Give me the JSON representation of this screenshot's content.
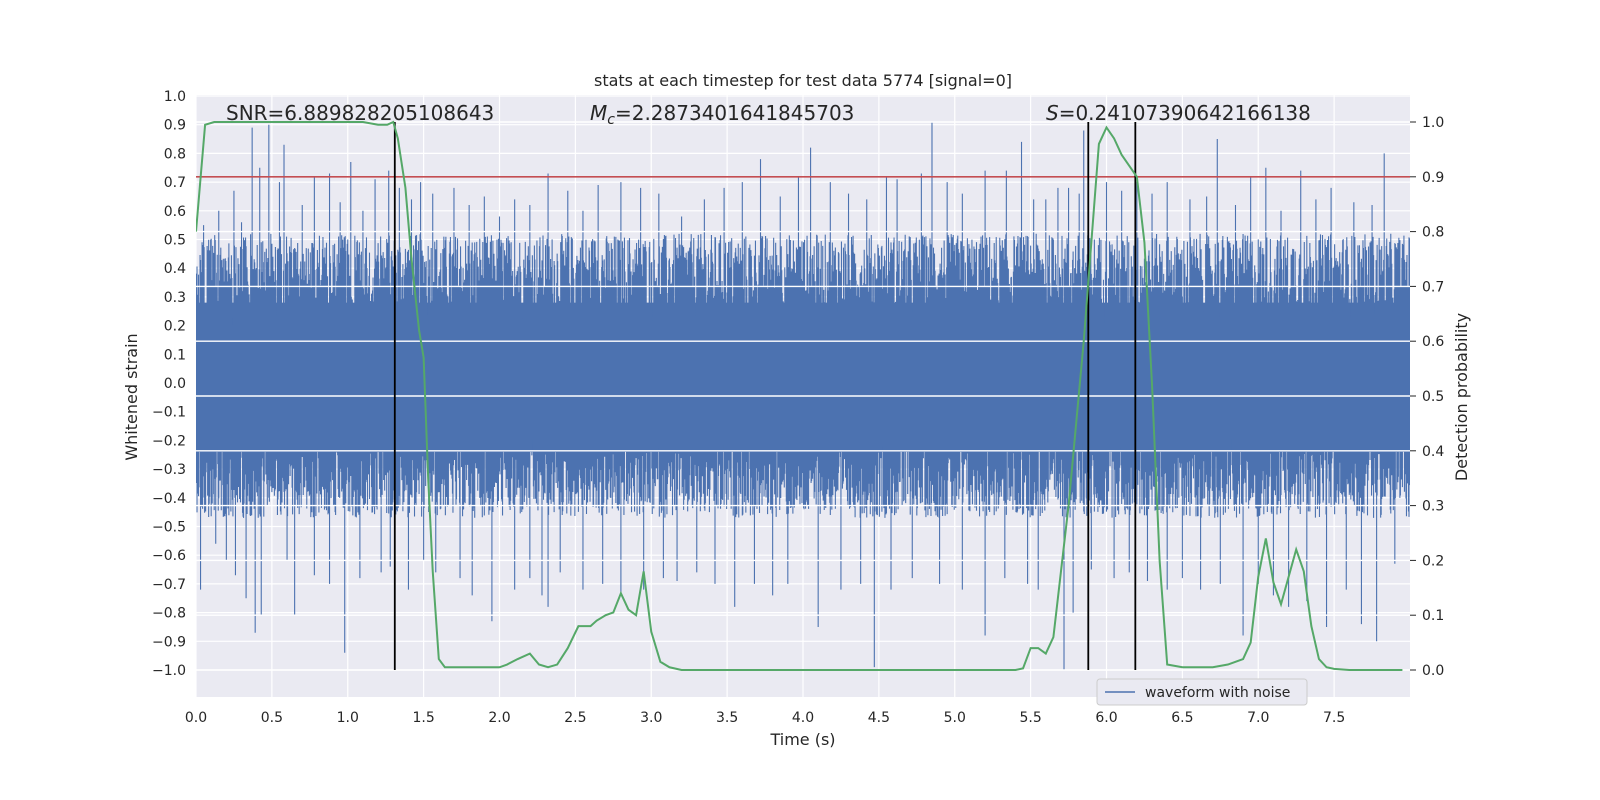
{
  "chart_data": {
    "type": "line",
    "title": "stats at each timestep for test data 5774 [signal=0]",
    "xlabel": "Time (s)",
    "ylabel_left": "Whitened strain",
    "ylabel_right": "Detection probability",
    "xlim": [
      0.0,
      8.0
    ],
    "ylim_left": [
      -1.0,
      1.0
    ],
    "ylim_right": [
      0.0,
      1.0
    ],
    "x_ticks": [
      "0.0",
      "0.5",
      "1.0",
      "1.5",
      "2.0",
      "2.5",
      "3.0",
      "3.5",
      "4.0",
      "4.5",
      "5.0",
      "5.5",
      "6.0",
      "6.5",
      "7.0",
      "7.5"
    ],
    "y_left_ticks": [
      "1.0",
      "0.9",
      "0.8",
      "0.7",
      "0.6",
      "0.5",
      "0.4",
      "0.3",
      "0.2",
      "0.1",
      "0.0",
      "−0.1",
      "−0.2",
      "−0.3",
      "−0.4",
      "−0.5",
      "−0.6",
      "−0.7",
      "−0.8",
      "−0.9",
      "−1.0"
    ],
    "y_right_ticks": [
      "1.0",
      "0.9",
      "0.8",
      "0.7",
      "0.6",
      "0.5",
      "0.4",
      "0.3",
      "0.2",
      "0.1",
      "0.0"
    ],
    "grid": true,
    "legend": {
      "position": "lower-right",
      "entries": [
        "waveform with noise"
      ]
    },
    "annotations": {
      "snr": "SNR=6.889828205108643",
      "mc_symbol": "M",
      "mc_sub": "c",
      "mc_value": "=2.2873401641845703",
      "s_symbol": "S",
      "s_value": "=0.24107390642166138"
    },
    "threshold": {
      "axis": "right",
      "value": 0.9,
      "color": "#c44e52"
    },
    "vertical_markers": [
      1.31,
      5.88,
      6.19
    ],
    "colors": {
      "waveform": "#4c72b0",
      "probability": "#55a868",
      "threshold": "#c44e52",
      "markers": "#000000",
      "background": "#eaeaf2",
      "grid": "#ffffff"
    },
    "series": [
      {
        "name": "waveform with noise",
        "axis": "left",
        "envelope_typical": [
          -0.47,
          0.52
        ],
        "spikes_up": [
          [
            0.05,
            0.55
          ],
          [
            0.15,
            0.6
          ],
          [
            0.25,
            0.67
          ],
          [
            0.3,
            0.56
          ],
          [
            0.37,
            0.89
          ],
          [
            0.42,
            0.75
          ],
          [
            0.48,
            0.9
          ],
          [
            0.55,
            0.7
          ],
          [
            0.58,
            0.83
          ],
          [
            0.7,
            0.62
          ],
          [
            0.78,
            0.72
          ],
          [
            0.88,
            0.73
          ],
          [
            0.95,
            0.63
          ],
          [
            1.02,
            0.77
          ],
          [
            1.1,
            0.6
          ],
          [
            1.18,
            0.71
          ],
          [
            1.27,
            0.74
          ],
          [
            1.34,
            0.68
          ],
          [
            1.42,
            0.64
          ],
          [
            1.48,
            0.7
          ],
          [
            1.56,
            0.66
          ],
          [
            1.7,
            0.68
          ],
          [
            1.8,
            0.62
          ],
          [
            1.9,
            0.65
          ],
          [
            2.0,
            0.58
          ],
          [
            2.1,
            0.64
          ],
          [
            2.2,
            0.62
          ],
          [
            2.32,
            0.73
          ],
          [
            2.45,
            0.67
          ],
          [
            2.55,
            0.6
          ],
          [
            2.65,
            0.69
          ],
          [
            2.8,
            0.7
          ],
          [
            2.93,
            0.68
          ],
          [
            3.05,
            0.66
          ],
          [
            3.2,
            0.58
          ],
          [
            3.35,
            0.64
          ],
          [
            3.48,
            0.68
          ],
          [
            3.6,
            0.7
          ],
          [
            3.72,
            0.78
          ],
          [
            3.85,
            0.65
          ],
          [
            3.97,
            0.72
          ],
          [
            4.05,
            0.82
          ],
          [
            4.18,
            0.7
          ],
          [
            4.3,
            0.66
          ],
          [
            4.42,
            0.64
          ],
          [
            4.55,
            0.72
          ],
          [
            4.62,
            0.71
          ],
          [
            4.78,
            0.73
          ],
          [
            4.85,
            0.91
          ],
          [
            4.95,
            0.7
          ],
          [
            5.05,
            0.66
          ],
          [
            5.2,
            0.74
          ],
          [
            5.34,
            0.74
          ],
          [
            5.44,
            0.84
          ],
          [
            5.52,
            0.64
          ],
          [
            5.6,
            0.64
          ],
          [
            5.68,
            0.68
          ],
          [
            5.75,
            0.68
          ],
          [
            5.82,
            0.66
          ],
          [
            5.85,
            0.88
          ],
          [
            6.0,
            0.7
          ],
          [
            6.1,
            0.67
          ],
          [
            6.2,
            0.7
          ],
          [
            6.3,
            0.66
          ],
          [
            6.4,
            0.7
          ],
          [
            6.55,
            0.64
          ],
          [
            6.66,
            0.65
          ],
          [
            6.73,
            0.85
          ],
          [
            6.85,
            0.62
          ],
          [
            6.95,
            0.72
          ],
          [
            7.05,
            0.75
          ],
          [
            7.15,
            0.6
          ],
          [
            7.28,
            0.74
          ],
          [
            7.38,
            0.64
          ],
          [
            7.48,
            0.68
          ],
          [
            7.63,
            0.63
          ],
          [
            7.75,
            0.62
          ],
          [
            7.83,
            0.8
          ]
        ],
        "spikes_down": [
          [
            0.03,
            -0.72
          ],
          [
            0.13,
            -0.56
          ],
          [
            0.2,
            -0.62
          ],
          [
            0.26,
            -0.67
          ],
          [
            0.33,
            -0.75
          ],
          [
            0.39,
            -0.87
          ],
          [
            0.43,
            -0.81
          ],
          [
            0.6,
            -0.62
          ],
          [
            0.65,
            -0.81
          ],
          [
            0.78,
            -0.67
          ],
          [
            0.88,
            -0.7
          ],
          [
            0.98,
            -0.94
          ],
          [
            1.08,
            -0.68
          ],
          [
            1.22,
            -0.66
          ],
          [
            1.28,
            -0.64
          ],
          [
            1.4,
            -0.72
          ],
          [
            1.5,
            -0.62
          ],
          [
            1.58,
            -0.66
          ],
          [
            1.74,
            -0.68
          ],
          [
            1.82,
            -0.74
          ],
          [
            1.95,
            -0.83
          ],
          [
            2.1,
            -0.72
          ],
          [
            2.2,
            -0.68
          ],
          [
            2.28,
            -0.74
          ],
          [
            2.32,
            -0.78
          ],
          [
            2.4,
            -0.66
          ],
          [
            2.55,
            -0.72
          ],
          [
            2.68,
            -0.7
          ],
          [
            2.8,
            -0.74
          ],
          [
            2.95,
            -0.72
          ],
          [
            3.08,
            -0.68
          ],
          [
            3.17,
            -0.69
          ],
          [
            3.3,
            -0.66
          ],
          [
            3.42,
            -0.7
          ],
          [
            3.55,
            -0.78
          ],
          [
            3.68,
            -0.7
          ],
          [
            3.8,
            -0.74
          ],
          [
            3.9,
            -0.7
          ],
          [
            4.1,
            -0.85
          ],
          [
            4.25,
            -0.72
          ],
          [
            4.38,
            -0.7
          ],
          [
            4.47,
            -0.99
          ],
          [
            4.58,
            -0.72
          ],
          [
            4.72,
            -0.68
          ],
          [
            4.9,
            -0.7
          ],
          [
            5.05,
            -0.72
          ],
          [
            5.2,
            -0.88
          ],
          [
            5.33,
            -0.68
          ],
          [
            5.48,
            -0.7
          ],
          [
            5.55,
            -0.72
          ],
          [
            5.72,
            -1.0
          ],
          [
            5.78,
            -0.8
          ],
          [
            5.9,
            -0.65
          ],
          [
            6.05,
            -0.68
          ],
          [
            6.15,
            -0.66
          ],
          [
            6.27,
            -0.69
          ],
          [
            6.4,
            -0.72
          ],
          [
            6.5,
            -0.68
          ],
          [
            6.62,
            -0.72
          ],
          [
            6.75,
            -0.7
          ],
          [
            6.9,
            -0.88
          ],
          [
            7.0,
            -0.7
          ],
          [
            7.1,
            -0.74
          ],
          [
            7.2,
            -0.78
          ],
          [
            7.32,
            -0.76
          ],
          [
            7.45,
            -0.85
          ],
          [
            7.58,
            -0.72
          ],
          [
            7.68,
            -0.84
          ],
          [
            7.78,
            -0.9
          ],
          [
            7.9,
            -0.63
          ]
        ]
      },
      {
        "name": "detection probability",
        "axis": "right",
        "x": [
          0.0,
          0.06,
          0.12,
          0.2,
          0.3,
          0.5,
          0.7,
          0.9,
          1.1,
          1.2,
          1.26,
          1.3,
          1.33,
          1.38,
          1.42,
          1.47,
          1.5,
          1.53,
          1.56,
          1.6,
          1.64,
          1.7,
          1.8,
          1.9,
          2.0,
          2.05,
          2.12,
          2.2,
          2.26,
          2.32,
          2.38,
          2.45,
          2.52,
          2.6,
          2.64,
          2.7,
          2.75,
          2.8,
          2.85,
          2.9,
          2.95,
          3.0,
          3.06,
          3.12,
          3.2,
          3.3,
          3.5,
          3.7,
          4.0,
          4.2,
          4.4,
          4.6,
          4.8,
          5.0,
          5.2,
          5.4,
          5.45,
          5.5,
          5.55,
          5.6,
          5.65,
          5.7,
          5.75,
          5.8,
          5.85,
          5.9,
          5.95,
          6.0,
          6.05,
          6.1,
          6.15,
          6.2,
          6.25,
          6.3,
          6.35,
          6.4,
          6.5,
          6.6,
          6.7,
          6.8,
          6.85,
          6.9,
          6.95,
          7.0,
          7.05,
          7.1,
          7.15,
          7.2,
          7.25,
          7.3,
          7.35,
          7.4,
          7.45,
          7.5,
          7.6,
          7.8,
          7.95
        ],
        "values": [
          0.8,
          0.995,
          1.0,
          1.0,
          1.0,
          1.0,
          1.0,
          1.0,
          1.0,
          0.995,
          0.995,
          1.0,
          0.97,
          0.88,
          0.75,
          0.62,
          0.57,
          0.35,
          0.18,
          0.02,
          0.005,
          0.005,
          0.005,
          0.005,
          0.005,
          0.01,
          0.02,
          0.03,
          0.01,
          0.005,
          0.01,
          0.04,
          0.08,
          0.08,
          0.09,
          0.1,
          0.105,
          0.14,
          0.11,
          0.1,
          0.18,
          0.07,
          0.015,
          0.005,
          0.0,
          0.0,
          0.0,
          0.0,
          0.0,
          0.0,
          0.0,
          0.0,
          0.0,
          0.0,
          0.0,
          0.0,
          0.003,
          0.04,
          0.04,
          0.03,
          0.06,
          0.18,
          0.3,
          0.45,
          0.6,
          0.78,
          0.96,
          0.99,
          0.97,
          0.94,
          0.92,
          0.9,
          0.78,
          0.52,
          0.2,
          0.01,
          0.005,
          0.005,
          0.005,
          0.01,
          0.015,
          0.02,
          0.05,
          0.17,
          0.24,
          0.16,
          0.12,
          0.17,
          0.22,
          0.18,
          0.08,
          0.02,
          0.005,
          0.002,
          0.0,
          0.0,
          0.0
        ]
      }
    ]
  }
}
